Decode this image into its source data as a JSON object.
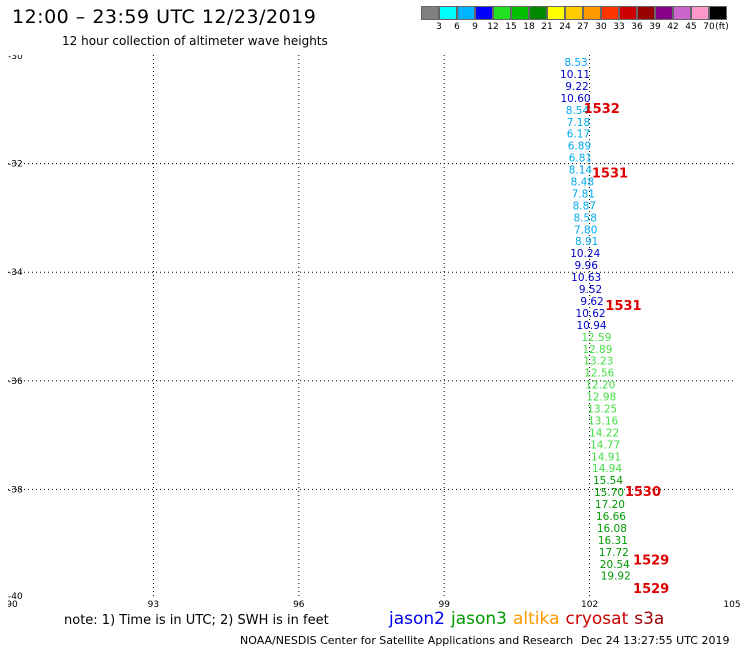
{
  "header": {
    "title": "12:00 – 23:59 UTC 12/23/2019",
    "subtitle": "12 hour collection of altimeter wave heights"
  },
  "color_legend": {
    "unit": "(ft)",
    "colors": [
      "#808080",
      "#00ffff",
      "#00b4ff",
      "#0000ff",
      "#20e020",
      "#00c000",
      "#008800",
      "#ffff00",
      "#ffcc00",
      "#ff9900",
      "#ff3300",
      "#cc0000",
      "#990000",
      "#880088",
      "#cc66cc",
      "#ff99cc",
      "#000000"
    ],
    "labels": [
      "3",
      "6",
      "9",
      "12",
      "15",
      "18",
      "21",
      "24",
      "27",
      "30",
      "33",
      "36",
      "39",
      "42",
      "45",
      "70"
    ]
  },
  "map": {
    "x_ticks": [
      "90",
      "93",
      "96",
      "99",
      "102",
      "105"
    ],
    "y_ticks": [
      "-30",
      "-32",
      "-34",
      "-36",
      "-38",
      "-40"
    ],
    "x_range": [
      90,
      105
    ],
    "y_range": [
      -40,
      -30
    ]
  },
  "chart_data": {
    "type": "scatter",
    "xlim": [
      90,
      105
    ],
    "ylim": [
      -40,
      -30
    ],
    "satellite_colors": {
      "jason2": "#0000ee",
      "jason3": "#009900",
      "altika": "#ff9900",
      "cryosat": "#cc0000",
      "s3a": "#990000"
    },
    "tracks": [
      {
        "satellite": "jason2",
        "points": [
          {
            "lon": 101.72,
            "lat": -30.13,
            "swh": "8.53",
            "color": "#00aaee"
          },
          {
            "lon": 101.7,
            "lat": -30.35,
            "swh": "10.11",
            "color": "#0000cc"
          },
          {
            "lon": 101.74,
            "lat": -30.57,
            "swh": "9.22",
            "color": "#0000cc"
          },
          {
            "lon": 101.71,
            "lat": -30.79,
            "swh": "10.60",
            "color": "#0000cc"
          },
          {
            "lon": 101.75,
            "lat": -31.01,
            "swh": "8.54",
            "color": "#00aaee"
          },
          {
            "lon": 101.77,
            "lat": -31.23,
            "swh": "7.18",
            "color": "#00aaee"
          },
          {
            "lon": 101.77,
            "lat": -31.45,
            "swh": "6.17",
            "color": "#00aaee"
          },
          {
            "lon": 101.79,
            "lat": -31.67,
            "swh": "6.89",
            "color": "#00aaee"
          },
          {
            "lon": 101.81,
            "lat": -31.89,
            "swh": "6.81",
            "color": "#00aaee"
          },
          {
            "lon": 101.81,
            "lat": -32.11,
            "swh": "8.14",
            "color": "#00aaee"
          },
          {
            "lon": 101.85,
            "lat": -32.33,
            "swh": "8.48",
            "color": "#00aaee"
          },
          {
            "lon": 101.87,
            "lat": -32.55,
            "swh": "7.81",
            "color": "#00aaee"
          },
          {
            "lon": 101.89,
            "lat": -32.77,
            "swh": "8.87",
            "color": "#00aaee"
          },
          {
            "lon": 101.91,
            "lat": -32.99,
            "swh": "8.58",
            "color": "#00aaee"
          },
          {
            "lon": 101.92,
            "lat": -33.21,
            "swh": "7.80",
            "color": "#00aaee"
          },
          {
            "lon": 101.94,
            "lat": -33.43,
            "swh": "8.91",
            "color": "#00aaee"
          },
          {
            "lon": 101.91,
            "lat": -33.65,
            "swh": "10.24",
            "color": "#0000cc"
          },
          {
            "lon": 101.93,
            "lat": -33.87,
            "swh": "9.96",
            "color": "#0000cc"
          },
          {
            "lon": 101.93,
            "lat": -34.09,
            "swh": "10.63",
            "color": "#0000cc"
          },
          {
            "lon": 102.02,
            "lat": -34.31,
            "swh": "9.52",
            "color": "#0000cc"
          },
          {
            "lon": 102.05,
            "lat": -34.53,
            "swh": "9.62",
            "color": "#0000cc"
          },
          {
            "lon": 102.02,
            "lat": -34.75,
            "swh": "10.62",
            "color": "#0000cc"
          },
          {
            "lon": 102.04,
            "lat": -34.97,
            "swh": "10.94",
            "color": "#0000cc"
          },
          {
            "lon": 102.14,
            "lat": -35.19,
            "swh": "12.59",
            "color": "#44dd44"
          },
          {
            "lon": 102.16,
            "lat": -35.41,
            "swh": "12.89",
            "color": "#44dd44"
          },
          {
            "lon": 102.18,
            "lat": -35.63,
            "swh": "13.23",
            "color": "#44dd44"
          },
          {
            "lon": 102.2,
            "lat": -35.85,
            "swh": "12.56",
            "color": "#44dd44"
          },
          {
            "lon": 102.22,
            "lat": -36.07,
            "swh": "12.20",
            "color": "#44dd44"
          },
          {
            "lon": 102.24,
            "lat": -36.29,
            "swh": "12.98",
            "color": "#44dd44"
          },
          {
            "lon": 102.26,
            "lat": -36.51,
            "swh": "13.25",
            "color": "#44dd44"
          },
          {
            "lon": 102.28,
            "lat": -36.73,
            "swh": "13.16",
            "color": "#44dd44"
          },
          {
            "lon": 102.3,
            "lat": -36.95,
            "swh": "14.22",
            "color": "#44dd44"
          },
          {
            "lon": 102.32,
            "lat": -37.17,
            "swh": "14.77",
            "color": "#44dd44"
          },
          {
            "lon": 102.34,
            "lat": -37.39,
            "swh": "14.91",
            "color": "#44dd44"
          },
          {
            "lon": 102.36,
            "lat": -37.61,
            "swh": "14.94",
            "color": "#44dd44"
          },
          {
            "lon": 102.38,
            "lat": -37.83,
            "swh": "15.54",
            "color": "#009900"
          },
          {
            "lon": 102.4,
            "lat": -38.05,
            "swh": "15.70",
            "color": "#009900"
          },
          {
            "lon": 102.42,
            "lat": -38.27,
            "swh": "17.20",
            "color": "#009900"
          },
          {
            "lon": 102.44,
            "lat": -38.49,
            "swh": "16.66",
            "color": "#009900"
          },
          {
            "lon": 102.46,
            "lat": -38.71,
            "swh": "16.08",
            "color": "#009900"
          },
          {
            "lon": 102.48,
            "lat": -38.93,
            "swh": "16.31",
            "color": "#009900"
          },
          {
            "lon": 102.5,
            "lat": -39.15,
            "swh": "17.72",
            "color": "#009900"
          },
          {
            "lon": 102.52,
            "lat": -39.37,
            "swh": "20.54",
            "color": "#009900"
          },
          {
            "lon": 102.54,
            "lat": -39.59,
            "swh": "19.92",
            "color": "#009900"
          }
        ]
      }
    ],
    "time_labels": [
      {
        "lon": 102.25,
        "lat": -30.98,
        "text": "1532",
        "color": "#dd0000"
      },
      {
        "lon": 102.42,
        "lat": -32.16,
        "text": "1531",
        "color": "#dd0000"
      },
      {
        "lon": 102.7,
        "lat": -34.6,
        "text": "1531",
        "color": "#dd0000"
      },
      {
        "lon": 103.1,
        "lat": -38.03,
        "text": "1530",
        "color": "#dd0000"
      },
      {
        "lon": 103.27,
        "lat": -39.29,
        "text": "1529",
        "color": "#dd0000"
      },
      {
        "lon": 103.27,
        "lat": -39.82,
        "text": "1529",
        "color": "#dd0000"
      }
    ]
  },
  "footer": {
    "note": "note:  1) Time is in UTC;  2) SWH is in feet",
    "satellites": [
      {
        "name": "jason2",
        "color": "#0000ee"
      },
      {
        "name": "jason3",
        "color": "#009900"
      },
      {
        "name": "altika",
        "color": "#ff9900"
      },
      {
        "name": "cryosat",
        "color": "#cc0000"
      },
      {
        "name": "s3a",
        "color": "#990000"
      }
    ],
    "credit": "NOAA/NESDIS Center for Satellite Applications and Research",
    "timestamp": "Dec 24  13:27:55 UTC 2019"
  }
}
